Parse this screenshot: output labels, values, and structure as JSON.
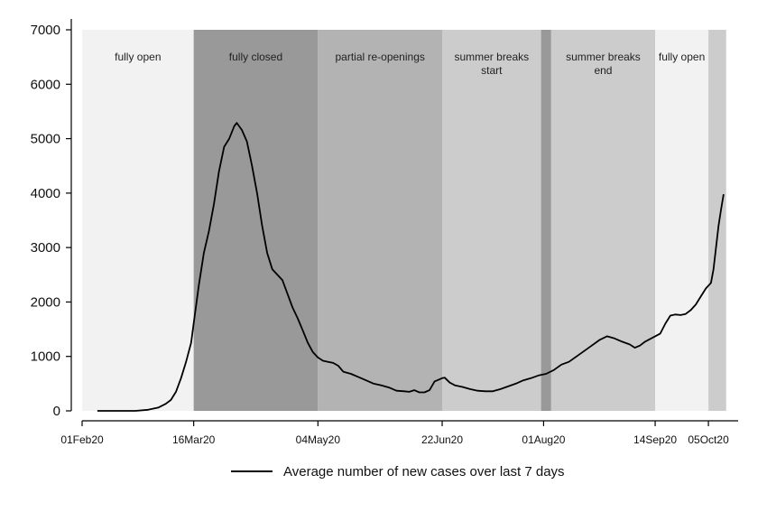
{
  "chart_data": {
    "type": "line",
    "title": "",
    "xlabel": "",
    "ylabel": "",
    "ylim": [
      0,
      7000
    ],
    "xlim": [
      "2020-02-01",
      "2020-10-10"
    ],
    "grid": false,
    "legend_position": "bottom",
    "y_ticks": [
      0,
      1000,
      2000,
      3000,
      4000,
      5000,
      6000,
      7000
    ],
    "x_ticks": [
      {
        "date": "2020-02-01",
        "label": "01Feb20"
      },
      {
        "date": "2020-03-16",
        "label": "16Mar20"
      },
      {
        "date": "2020-05-04",
        "label": "04May20"
      },
      {
        "date": "2020-06-22",
        "label": "22Jun20"
      },
      {
        "date": "2020-08-01",
        "label": "01Aug20"
      },
      {
        "date": "2020-09-14",
        "label": "14Sep20"
      },
      {
        "date": "2020-10-05",
        "label": "05Oct20"
      }
    ],
    "phases": [
      {
        "start": "2020-02-01",
        "end": "2020-03-16",
        "label": [
          "fully open"
        ],
        "color": "#f2f2f2"
      },
      {
        "start": "2020-03-16",
        "end": "2020-05-04",
        "label": [
          "fully closed"
        ],
        "color": "#999999"
      },
      {
        "start": "2020-05-04",
        "end": "2020-06-22",
        "label": [
          "partial re-openings"
        ],
        "color": "#b3b3b3"
      },
      {
        "start": "2020-06-22",
        "end": "2020-07-31",
        "label": [
          "summer breaks",
          "start"
        ],
        "color": "#cccccc"
      },
      {
        "start": "2020-07-31",
        "end": "2020-08-04",
        "label": [],
        "color": "#999999"
      },
      {
        "start": "2020-08-04",
        "end": "2020-09-14",
        "label": [
          "summer breaks",
          "end"
        ],
        "color": "#cccccc"
      },
      {
        "start": "2020-09-14",
        "end": "2020-10-05",
        "label": [
          "fully open"
        ],
        "color": "#f2f2f2"
      },
      {
        "start": "2020-10-05",
        "end": "2020-10-12",
        "label": [],
        "color": "#cccccc"
      }
    ],
    "series": [
      {
        "name": "Average number of new cases over last 7 days",
        "color": "#000000",
        "points": [
          [
            "2020-02-07",
            0
          ],
          [
            "2020-02-15",
            0
          ],
          [
            "2020-02-22",
            0
          ],
          [
            "2020-02-27",
            20
          ],
          [
            "2020-03-02",
            60
          ],
          [
            "2020-03-05",
            130
          ],
          [
            "2020-03-07",
            200
          ],
          [
            "2020-03-09",
            350
          ],
          [
            "2020-03-11",
            600
          ],
          [
            "2020-03-13",
            900
          ],
          [
            "2020-03-15",
            1250
          ],
          [
            "2020-03-16",
            1600
          ],
          [
            "2020-03-18",
            2300
          ],
          [
            "2020-03-20",
            2900
          ],
          [
            "2020-03-22",
            3300
          ],
          [
            "2020-03-24",
            3800
          ],
          [
            "2020-03-26",
            4400
          ],
          [
            "2020-03-28",
            4850
          ],
          [
            "2020-03-30",
            5000
          ],
          [
            "2020-04-01",
            5230
          ],
          [
            "2020-04-02",
            5290
          ],
          [
            "2020-04-04",
            5160
          ],
          [
            "2020-04-06",
            4950
          ],
          [
            "2020-04-08",
            4500
          ],
          [
            "2020-04-10",
            4000
          ],
          [
            "2020-04-12",
            3400
          ],
          [
            "2020-04-14",
            2900
          ],
          [
            "2020-04-16",
            2600
          ],
          [
            "2020-04-18",
            2500
          ],
          [
            "2020-04-20",
            2400
          ],
          [
            "2020-04-22",
            2150
          ],
          [
            "2020-04-24",
            1900
          ],
          [
            "2020-04-26",
            1700
          ],
          [
            "2020-04-28",
            1480
          ],
          [
            "2020-04-30",
            1250
          ],
          [
            "2020-05-02",
            1080
          ],
          [
            "2020-05-04",
            980
          ],
          [
            "2020-05-06",
            920
          ],
          [
            "2020-05-08",
            900
          ],
          [
            "2020-05-10",
            880
          ],
          [
            "2020-05-12",
            830
          ],
          [
            "2020-05-14",
            720
          ],
          [
            "2020-05-17",
            680
          ],
          [
            "2020-05-20",
            620
          ],
          [
            "2020-05-23",
            560
          ],
          [
            "2020-05-26",
            500
          ],
          [
            "2020-05-29",
            470
          ],
          [
            "2020-06-01",
            430
          ],
          [
            "2020-06-04",
            370
          ],
          [
            "2020-06-07",
            360
          ],
          [
            "2020-06-09",
            350
          ],
          [
            "2020-06-11",
            380
          ],
          [
            "2020-06-13",
            340
          ],
          [
            "2020-06-15",
            340
          ],
          [
            "2020-06-17",
            380
          ],
          [
            "2020-06-19",
            540
          ],
          [
            "2020-06-22",
            600
          ],
          [
            "2020-06-23",
            610
          ],
          [
            "2020-06-25",
            520
          ],
          [
            "2020-06-27",
            470
          ],
          [
            "2020-06-30",
            440
          ],
          [
            "2020-07-03",
            400
          ],
          [
            "2020-07-06",
            370
          ],
          [
            "2020-07-09",
            360
          ],
          [
            "2020-07-12",
            360
          ],
          [
            "2020-07-15",
            400
          ],
          [
            "2020-07-18",
            450
          ],
          [
            "2020-07-21",
            500
          ],
          [
            "2020-07-24",
            560
          ],
          [
            "2020-07-27",
            600
          ],
          [
            "2020-07-30",
            650
          ],
          [
            "2020-08-02",
            680
          ],
          [
            "2020-08-05",
            750
          ],
          [
            "2020-08-08",
            850
          ],
          [
            "2020-08-11",
            900
          ],
          [
            "2020-08-14",
            1000
          ],
          [
            "2020-08-17",
            1100
          ],
          [
            "2020-08-20",
            1200
          ],
          [
            "2020-08-23",
            1300
          ],
          [
            "2020-08-26",
            1370
          ],
          [
            "2020-08-29",
            1330
          ],
          [
            "2020-09-01",
            1270
          ],
          [
            "2020-09-04",
            1220
          ],
          [
            "2020-09-06",
            1160
          ],
          [
            "2020-09-08",
            1200
          ],
          [
            "2020-09-10",
            1270
          ],
          [
            "2020-09-12",
            1320
          ],
          [
            "2020-09-14",
            1370
          ],
          [
            "2020-09-16",
            1420
          ],
          [
            "2020-09-18",
            1600
          ],
          [
            "2020-09-20",
            1750
          ],
          [
            "2020-09-22",
            1770
          ],
          [
            "2020-09-24",
            1760
          ],
          [
            "2020-09-26",
            1780
          ],
          [
            "2020-09-28",
            1850
          ],
          [
            "2020-09-30",
            1950
          ],
          [
            "2020-10-02",
            2100
          ],
          [
            "2020-10-04",
            2250
          ],
          [
            "2020-10-06",
            2350
          ],
          [
            "2020-10-07",
            2600
          ],
          [
            "2020-10-08",
            3000
          ],
          [
            "2020-10-09",
            3400
          ],
          [
            "2020-10-10",
            3700
          ],
          [
            "2020-10-11",
            3980
          ]
        ]
      }
    ]
  }
}
